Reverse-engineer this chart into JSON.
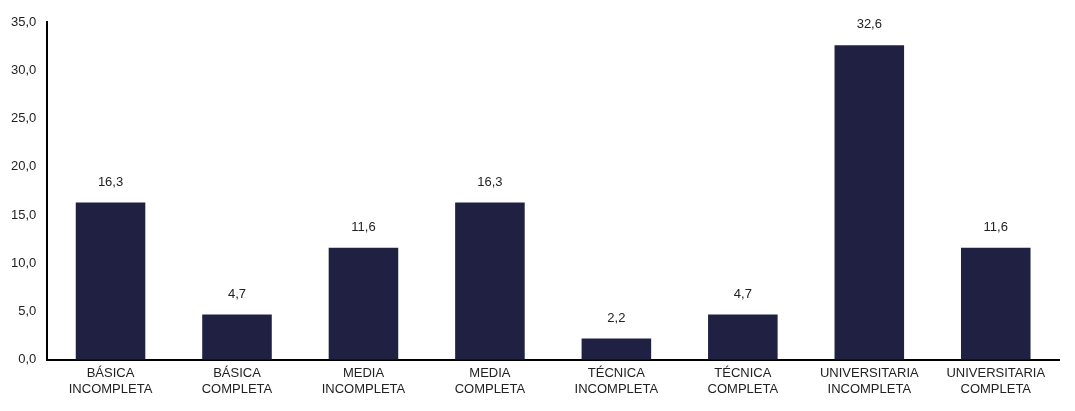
{
  "chart_data": {
    "type": "bar",
    "categories": [
      "BÁSICA INCOMPLETA",
      "BÁSICA COMPLETA",
      "MEDIA INCOMPLETA",
      "MEDIA COMPLETA",
      "TÉCNICA INCOMPLETA",
      "TÉCNICA COMPLETA",
      "UNIVERSITARIA INCOMPLETA",
      "UNIVERSITARIA COMPLETA"
    ],
    "values": [
      16.3,
      4.7,
      11.6,
      16.3,
      2.2,
      4.7,
      32.6,
      11.6
    ],
    "value_labels": [
      "16,3",
      "4,7",
      "11,6",
      "16,3",
      "2,2",
      "4,7",
      "32,6",
      "11,6"
    ],
    "color": "#1f2042",
    "ylim": [
      0,
      35
    ],
    "yticks": [
      {
        "value": 0,
        "label": "0,0"
      },
      {
        "value": 5,
        "label": "5,0"
      },
      {
        "value": 10,
        "label": "10,0"
      },
      {
        "value": 15,
        "label": "15,0"
      },
      {
        "value": 20,
        "label": "20,0"
      },
      {
        "value": 25,
        "label": "25,0"
      },
      {
        "value": 30,
        "label": "30,0"
      },
      {
        "value": 35,
        "label": "35,0"
      }
    ],
    "grid": false,
    "legend": false
  }
}
